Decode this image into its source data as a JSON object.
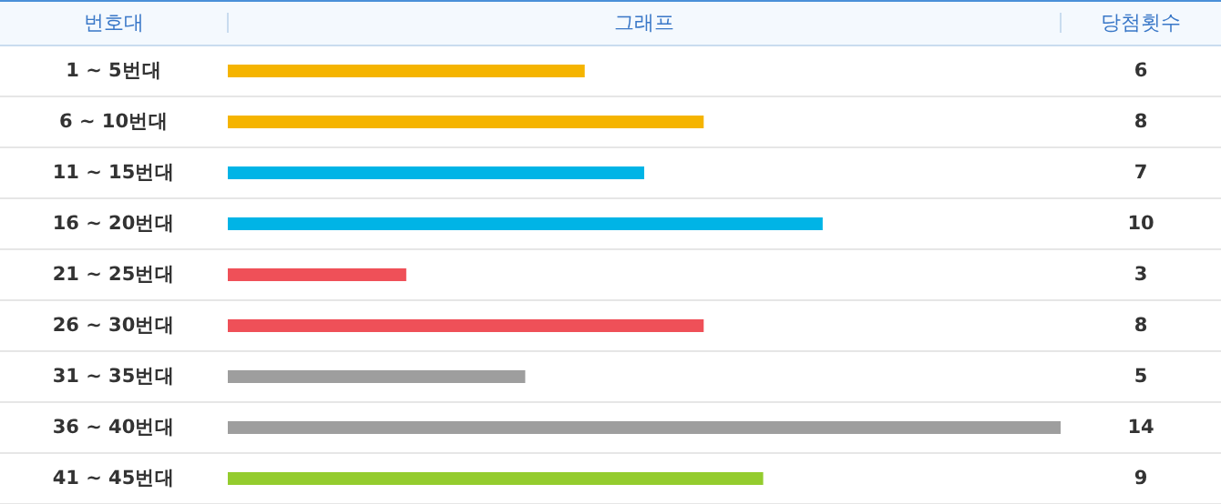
{
  "chart_data": {
    "type": "bar",
    "orientation": "horizontal",
    "ylabel": "번호대",
    "xlabel": "그래프",
    "y2label": "당첨횟수",
    "categories": [
      "1 ~ 5번대",
      "6 ~ 10번대",
      "11 ~ 15번대",
      "16 ~ 20번대",
      "21 ~ 25번대",
      "26 ~ 30번대",
      "31 ~ 35번대",
      "36 ~ 40번대",
      "41 ~ 45번대"
    ],
    "values": [
      6,
      8,
      7,
      10,
      3,
      8,
      5,
      14,
      9
    ],
    "colors": [
      "#f5b400",
      "#f5b400",
      "#00b4e6",
      "#00b4e6",
      "#ef5058",
      "#ef5058",
      "#9e9e9e",
      "#9e9e9e",
      "#94cc2e"
    ],
    "data_labels": true
  }
}
